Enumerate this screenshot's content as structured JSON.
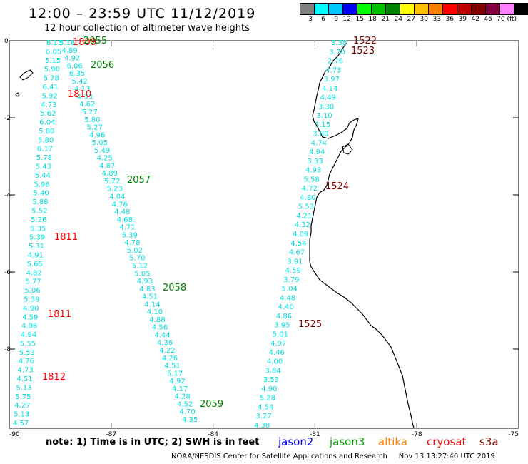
{
  "header": {
    "title": "12:00 – 23:59 UTC 11/12/2019",
    "subtitle": "12 hour collection of altimeter wave heights"
  },
  "colorbar": {
    "labels": [
      "3",
      "6",
      "9",
      "12",
      "15",
      "18",
      "21",
      "24",
      "27",
      "30",
      "33",
      "36",
      "39",
      "42",
      "45",
      "70 (ft)"
    ],
    "colors": [
      "#808080",
      "#00ffff",
      "#00c8ff",
      "#0000ff",
      "#00ff00",
      "#00c000",
      "#008000",
      "#ffff00",
      "#ffc000",
      "#ff8000",
      "#ff0000",
      "#c00000",
      "#800000",
      "#800040",
      "#ff80ff",
      "#000000"
    ]
  },
  "axes": {
    "x_ticks": [
      "-90",
      "-87",
      "-84",
      "-81",
      "-78",
      "-75"
    ],
    "y_ticks": [
      "0",
      "-2",
      "-4",
      "-6",
      "-8"
    ]
  },
  "map_colors": {
    "track": "#00e0e0",
    "jason3": "#008000",
    "cryosat": "#ff0000",
    "s3a": "#800000",
    "coast": "#000000"
  },
  "tracks": [
    {
      "id": "track-1",
      "values": [
        "6.15",
        "6.05",
        "5.15",
        "5.90",
        "5.78",
        "6.41",
        "5.92",
        "4.73",
        "5.62",
        "6.04",
        "5.80",
        "5.80",
        "6.17",
        "5.78",
        "5.43",
        "5.44",
        "5.96",
        "5.40",
        "5.88",
        "5.52",
        "5.26",
        "5.35",
        "5.39",
        "5.31",
        "4.91",
        "5.65",
        "4.82",
        "5.77",
        "5.06",
        "5.39",
        "4.90",
        "4.59",
        "4.96",
        "4.94",
        "5.55",
        "5.53",
        "4.76",
        "4.73",
        "4.51",
        "5.13",
        "5.75",
        "4.27",
        "5.13",
        "4.57"
      ],
      "times": [
        {
          "label": "1809",
          "color": "cryosat"
        },
        {
          "label": "1810",
          "color": "cryosat"
        },
        {
          "label": "1811",
          "color": "cryosat"
        },
        {
          "label": "1811",
          "color": "cryosat"
        },
        {
          "label": "1812",
          "color": "cryosat"
        }
      ]
    },
    {
      "id": "track-2",
      "values": [
        "5.16",
        "4.89",
        "4.92",
        "6.06",
        "6.35",
        "5.42",
        "4.13",
        "4.33",
        "4.62",
        "5.27",
        "5.80",
        "5.27",
        "4.96",
        "5.05",
        "5.49",
        "4.25",
        "4.87",
        "4.89",
        "5.72",
        "5.23",
        "4.04",
        "4.76",
        "4.48",
        "4.68",
        "4.71",
        "5.39",
        "4.78",
        "5.02",
        "5.70",
        "5.12",
        "5.05",
        "4.93",
        "4.83",
        "4.51",
        "4.14",
        "4.10",
        "4.88",
        "4.56",
        "4.44",
        "4.36",
        "4.22",
        "4.26",
        "4.51",
        "5.17",
        "4.92",
        "4.17",
        "4.28",
        "4.52",
        "4.70",
        "4.35"
      ],
      "times": [
        {
          "label": "2055",
          "color": "jason3"
        },
        {
          "label": "2056",
          "color": "jason3"
        },
        {
          "label": "2057",
          "color": "jason3"
        },
        {
          "label": "2058",
          "color": "jason3"
        },
        {
          "label": "2059",
          "color": "jason3"
        }
      ]
    },
    {
      "id": "track-3",
      "values": [
        "3.38",
        "3.70",
        "2.76",
        "4.73",
        "3.97",
        "4.14",
        "4.49",
        "3.30",
        "3.10",
        "3.15",
        "3.80",
        "4.74",
        "4.94",
        "3.33",
        "4.93",
        "5.58",
        "4.72",
        "4.80",
        "5.53",
        "4.21",
        "4.32",
        "4.09",
        "4.54",
        "4.67",
        "3.91",
        "4.59",
        "3.79",
        "5.04",
        "4.48",
        "4.40",
        "4.86",
        "3.95",
        "5.01",
        "4.97",
        "4.46",
        "4.00",
        "3.84",
        "3.53",
        "4.90",
        "5.28",
        "4.54",
        "3.27",
        "4.38"
      ],
      "times": [
        {
          "label": "1522",
          "color": "s3a"
        },
        {
          "label": "1523",
          "color": "s3a"
        },
        {
          "label": "1524",
          "color": "s3a"
        },
        {
          "label": "1525",
          "color": "s3a"
        }
      ]
    }
  ],
  "footer": {
    "note": "note: 1) Time is in UTC; 2) SWH is in feet",
    "satellites": [
      {
        "name": "jason2",
        "color": "#0000ff"
      },
      {
        "name": "jason3",
        "color": "#00a000"
      },
      {
        "name": "altika",
        "color": "#ff8000"
      },
      {
        "name": "cryosat",
        "color": "#ff0000"
      },
      {
        "name": "s3a",
        "color": "#800000"
      }
    ],
    "credit": "NOAA/NESDIS Center for Satellite Applications and Research",
    "timestamp": "Nov 13 13:27:40 UTC 2019"
  }
}
